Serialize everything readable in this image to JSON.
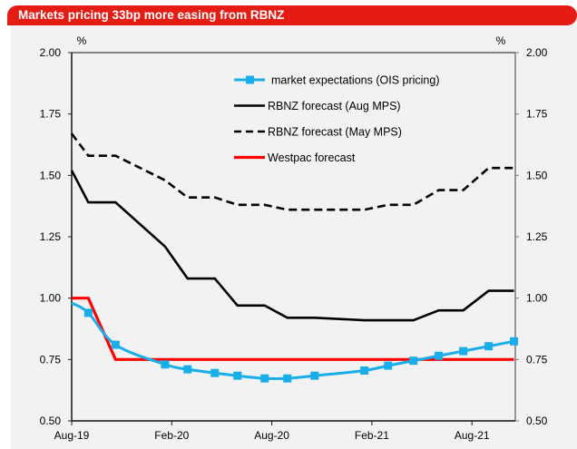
{
  "title": "Markets pricing 33bp more easing from RBNZ",
  "colors": {
    "title_bg": "#e41c13",
    "ois": "#1aaee8",
    "aug_mps": "#000000",
    "may_mps": "#000000",
    "westpac": "#ff0000"
  },
  "chart_data": {
    "type": "line",
    "title": "Markets pricing 33bp more easing from RBNZ",
    "xlabel": "",
    "ylabel_left": "%",
    "ylabel_right": "%",
    "x_unit": "months since Aug-19",
    "xlim": [
      0,
      26.6
    ],
    "ylim": [
      0.5,
      2.0
    ],
    "grid": false,
    "legend_position": "top-center",
    "x_ticks": [
      {
        "label": "Aug-19",
        "x": 0
      },
      {
        "label": "Feb-20",
        "x": 6
      },
      {
        "label": "Aug-20",
        "x": 12
      },
      {
        "label": "Feb-21",
        "x": 18
      },
      {
        "label": "Aug-21",
        "x": 24
      }
    ],
    "y_ticks": [
      "0.50",
      "0.75",
      "1.00",
      "1.25",
      "1.50",
      "1.75",
      "2.00"
    ],
    "x": [
      0,
      1.0,
      2.63,
      5.6,
      6.95,
      8.58,
      9.94,
      11.57,
      12.93,
      14.57,
      17.55,
      18.97,
      20.49,
      22.01,
      23.48,
      25.0,
      26.52
    ],
    "series": [
      {
        "name": "market expectations (OIS pricing)",
        "style": "solid-markers",
        "color_key": "ois",
        "values": [
          0.98,
          0.94,
          0.81,
          0.73,
          0.71,
          0.695,
          0.684,
          0.673,
          0.673,
          0.684,
          0.705,
          0.725,
          0.745,
          0.765,
          0.784,
          0.804,
          0.824
        ]
      },
      {
        "name": "RBNZ forecast (Aug MPS)",
        "style": "solid",
        "color_key": "aug_mps",
        "values": [
          1.52,
          1.39,
          1.39,
          1.21,
          1.08,
          1.08,
          0.97,
          0.97,
          0.92,
          0.92,
          0.91,
          0.91,
          0.91,
          0.95,
          0.95,
          1.03,
          1.03
        ]
      },
      {
        "name": "RBNZ forecast (May MPS)",
        "style": "dashed",
        "color_key": "may_mps",
        "values": [
          1.67,
          1.58,
          1.58,
          1.48,
          1.41,
          1.41,
          1.38,
          1.38,
          1.36,
          1.36,
          1.36,
          1.38,
          1.38,
          1.44,
          1.44,
          1.53,
          1.53
        ]
      },
      {
        "name": "Westpac forecast",
        "style": "solid",
        "color_key": "westpac",
        "values": [
          1.0,
          1.0,
          0.75,
          0.75,
          0.75,
          0.75,
          0.75,
          0.75,
          0.75,
          0.75,
          0.75,
          0.75,
          0.75,
          0.75,
          0.75,
          0.75,
          0.75
        ]
      }
    ]
  }
}
